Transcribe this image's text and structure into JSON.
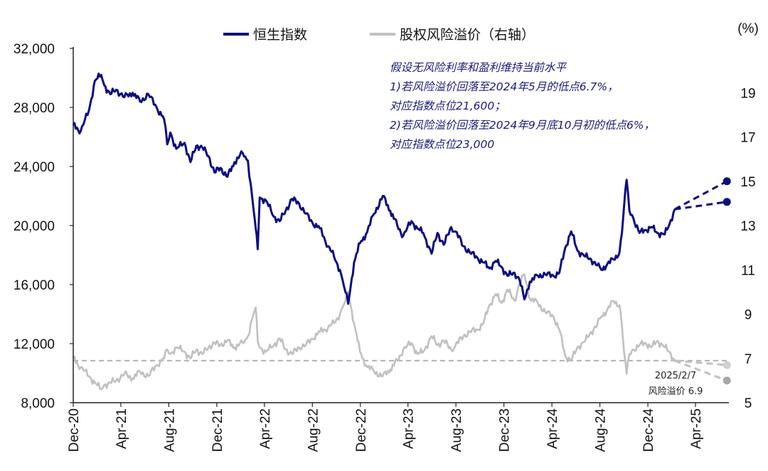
{
  "chart_data": {
    "type": "line",
    "title": "",
    "colors": {
      "hsi": "#0d0d80",
      "erp": "#c0c0c0",
      "ref_line": "#b3b3b3"
    },
    "x_ticks": [
      "Dec-20",
      "Apr-21",
      "Aug-21",
      "Dec-21",
      "Apr-22",
      "Aug-22",
      "Dec-22",
      "Apr-23",
      "Aug-23",
      "Dec-23",
      "Apr-24",
      "Aug-24",
      "Dec-24",
      "Apr-25"
    ],
    "left_axis": {
      "ylim": [
        8000,
        32000
      ],
      "ticks": [
        "8,000",
        "12,000",
        "16,000",
        "20,000",
        "24,000",
        "28,000",
        "32,000"
      ],
      "tick_values": [
        8000,
        12000,
        16000,
        20000,
        24000,
        28000,
        32000
      ]
    },
    "right_axis": {
      "ylim": [
        5,
        21
      ],
      "unit": "(%)",
      "ticks": [
        "5",
        "7",
        "9",
        "11",
        "13",
        "15",
        "17",
        "19"
      ],
      "tick_values": [
        5,
        7,
        9,
        11,
        13,
        15,
        17,
        19
      ]
    },
    "legend": [
      "恒生指数",
      "股权风险溢价（右轴）"
    ],
    "series": [
      {
        "name": "恒生指数",
        "axis": "left",
        "x": [
          "2020-12-01",
          "2020-12-20",
          "2021-01-10",
          "2021-01-25",
          "2021-02-10",
          "2021-02-18",
          "2021-03-05",
          "2021-03-20",
          "2021-04-10",
          "2021-05-01",
          "2021-05-20",
          "2021-06-10",
          "2021-07-01",
          "2021-07-20",
          "2021-07-28",
          "2021-08-05",
          "2021-08-20",
          "2021-09-10",
          "2021-09-25",
          "2021-10-10",
          "2021-10-25",
          "2021-11-10",
          "2021-11-25",
          "2021-12-10",
          "2021-12-28",
          "2022-01-15",
          "2022-02-05",
          "2022-02-18",
          "2022-03-01",
          "2022-03-10",
          "2022-03-15",
          "2022-03-20",
          "2022-04-05",
          "2022-04-25",
          "2022-05-10",
          "2022-05-25",
          "2022-06-10",
          "2022-06-28",
          "2022-07-15",
          "2022-08-01",
          "2022-08-20",
          "2022-09-10",
          "2022-09-25",
          "2022-10-10",
          "2022-10-24",
          "2022-10-31",
          "2022-11-15",
          "2022-11-30",
          "2022-12-15",
          "2023-01-05",
          "2023-01-27",
          "2023-02-15",
          "2023-03-05",
          "2023-03-20",
          "2023-04-10",
          "2023-04-25",
          "2023-05-10",
          "2023-05-31",
          "2023-06-15",
          "2023-07-01",
          "2023-07-20",
          "2023-07-31",
          "2023-08-20",
          "2023-09-05",
          "2023-09-25",
          "2023-10-10",
          "2023-10-25",
          "2023-11-10",
          "2023-11-25",
          "2023-12-10",
          "2023-12-28",
          "2024-01-10",
          "2024-01-22",
          "2024-02-05",
          "2024-02-25",
          "2024-03-15",
          "2024-04-05",
          "2024-04-20",
          "2024-05-05",
          "2024-05-20",
          "2024-06-05",
          "2024-06-25",
          "2024-07-10",
          "2024-07-25",
          "2024-08-05",
          "2024-08-20",
          "2024-09-05",
          "2024-09-20",
          "2024-09-26",
          "2024-10-02",
          "2024-10-08",
          "2024-10-15",
          "2024-10-25",
          "2024-11-10",
          "2024-11-25",
          "2024-12-10",
          "2024-12-25",
          "2025-01-13",
          "2025-01-25",
          "2025-02-07"
        ],
        "values": [
          26800,
          26400,
          27800,
          29800,
          30200,
          29500,
          28900,
          29200,
          28700,
          29000,
          28400,
          28900,
          28000,
          27200,
          25500,
          26300,
          25200,
          25600,
          24300,
          25400,
          25300,
          24700,
          23600,
          23900,
          23300,
          24300,
          24900,
          24400,
          21900,
          19800,
          18400,
          21900,
          21700,
          20600,
          20300,
          21000,
          21800,
          21500,
          20800,
          20200,
          19800,
          18600,
          17900,
          17000,
          15500,
          14700,
          17500,
          18800,
          19400,
          20800,
          22000,
          21000,
          20000,
          19300,
          20300,
          19800,
          19500,
          18100,
          19500,
          18700,
          19900,
          19600,
          18600,
          18200,
          17800,
          17500,
          17100,
          17600,
          17200,
          16600,
          16800,
          16300,
          15000,
          16200,
          16600,
          16700,
          16600,
          16800,
          18500,
          19600,
          18300,
          17900,
          17700,
          17300,
          17000,
          17400,
          17700,
          18200,
          19500,
          21500,
          23100,
          21000,
          20500,
          19500,
          19700,
          19900,
          19500,
          19400,
          20100,
          21100
        ]
      },
      {
        "name": "股权风险溢价（右轴）",
        "axis": "right",
        "x": [
          "2020-12-01",
          "2020-12-20",
          "2021-01-10",
          "2021-01-25",
          "2021-02-10",
          "2021-02-18",
          "2021-03-05",
          "2021-03-20",
          "2021-04-10",
          "2021-05-01",
          "2021-05-20",
          "2021-06-10",
          "2021-07-01",
          "2021-07-20",
          "2021-07-28",
          "2021-08-05",
          "2021-08-20",
          "2021-09-10",
          "2021-09-25",
          "2021-10-10",
          "2021-10-25",
          "2021-11-10",
          "2021-11-25",
          "2021-12-10",
          "2021-12-28",
          "2022-01-15",
          "2022-02-05",
          "2022-02-18",
          "2022-03-01",
          "2022-03-10",
          "2022-03-15",
          "2022-03-20",
          "2022-04-05",
          "2022-04-25",
          "2022-05-10",
          "2022-05-25",
          "2022-06-10",
          "2022-06-28",
          "2022-07-15",
          "2022-08-01",
          "2022-08-20",
          "2022-09-10",
          "2022-09-25",
          "2022-10-10",
          "2022-10-24",
          "2022-10-31",
          "2022-11-15",
          "2022-11-30",
          "2022-12-15",
          "2023-01-05",
          "2023-01-27",
          "2023-02-15",
          "2023-03-05",
          "2023-03-20",
          "2023-04-10",
          "2023-04-25",
          "2023-05-10",
          "2023-05-31",
          "2023-06-15",
          "2023-07-01",
          "2023-07-20",
          "2023-07-31",
          "2023-08-20",
          "2023-09-05",
          "2023-09-25",
          "2023-10-10",
          "2023-10-25",
          "2023-11-10",
          "2023-11-25",
          "2023-12-10",
          "2023-12-28",
          "2024-01-10",
          "2024-01-22",
          "2024-02-05",
          "2024-02-25",
          "2024-03-15",
          "2024-04-05",
          "2024-04-20",
          "2024-05-05",
          "2024-05-20",
          "2024-06-05",
          "2024-06-25",
          "2024-07-10",
          "2024-07-25",
          "2024-08-05",
          "2024-08-20",
          "2024-09-05",
          "2024-09-20",
          "2024-09-26",
          "2024-10-02",
          "2024-10-08",
          "2024-10-15",
          "2024-10-25",
          "2024-11-10",
          "2024-11-25",
          "2024-12-10",
          "2024-12-25",
          "2025-01-13",
          "2025-01-25",
          "2025-02-07"
        ],
        "values": [
          7.0,
          6.6,
          6.2,
          5.9,
          5.6,
          5.8,
          5.9,
          6.0,
          6.3,
          6.1,
          6.4,
          6.2,
          6.7,
          7.0,
          7.4,
          7.2,
          7.5,
          7.3,
          7.0,
          7.4,
          7.2,
          7.5,
          7.7,
          7.6,
          7.8,
          7.5,
          7.7,
          8.0,
          8.8,
          9.3,
          7.8,
          7.5,
          7.3,
          7.6,
          7.9,
          7.4,
          7.2,
          7.5,
          7.6,
          7.9,
          8.2,
          8.4,
          8.6,
          9.0,
          9.6,
          10.0,
          8.6,
          7.3,
          6.7,
          6.4,
          6.2,
          6.5,
          6.9,
          7.4,
          7.7,
          7.2,
          7.3,
          8.0,
          7.6,
          7.8,
          7.4,
          7.6,
          8.0,
          8.2,
          8.3,
          8.6,
          9.4,
          9.9,
          9.5,
          10.1,
          9.6,
          10.4,
          10.8,
          9.7,
          9.5,
          9.1,
          8.9,
          8.3,
          7.1,
          6.9,
          7.5,
          7.8,
          8.2,
          8.5,
          8.9,
          9.2,
          9.6,
          9.4,
          8.5,
          7.2,
          6.3,
          7.2,
          7.4,
          7.6,
          7.7,
          7.5,
          7.8,
          7.5,
          7.3,
          6.9
        ]
      }
    ],
    "ref_line": {
      "axis": "right",
      "value": 6.9
    },
    "projections": [
      {
        "from_x": "2025-02-07",
        "to_x": "2025-06-20",
        "hsi_from": 21100,
        "hsi_to": 23000,
        "erp_to": 6.0
      },
      {
        "from_x": "2025-02-07",
        "to_x": "2025-06-20",
        "hsi_from": 21100,
        "hsi_to": 21600,
        "erp_to": 6.7
      }
    ],
    "annotation_lines": [
      "假设无风险利率和盈利维持当前水平",
      "1)若风险溢价回落至2024年5月的低点6.7%，",
      "对应指数点位21,600；",
      "2)若风险溢价回落至2024年9月底10月初的低点6%，",
      "对应指数点位23,000"
    ],
    "point_note": [
      "2025/2/7",
      "风险溢价 6.9"
    ]
  }
}
